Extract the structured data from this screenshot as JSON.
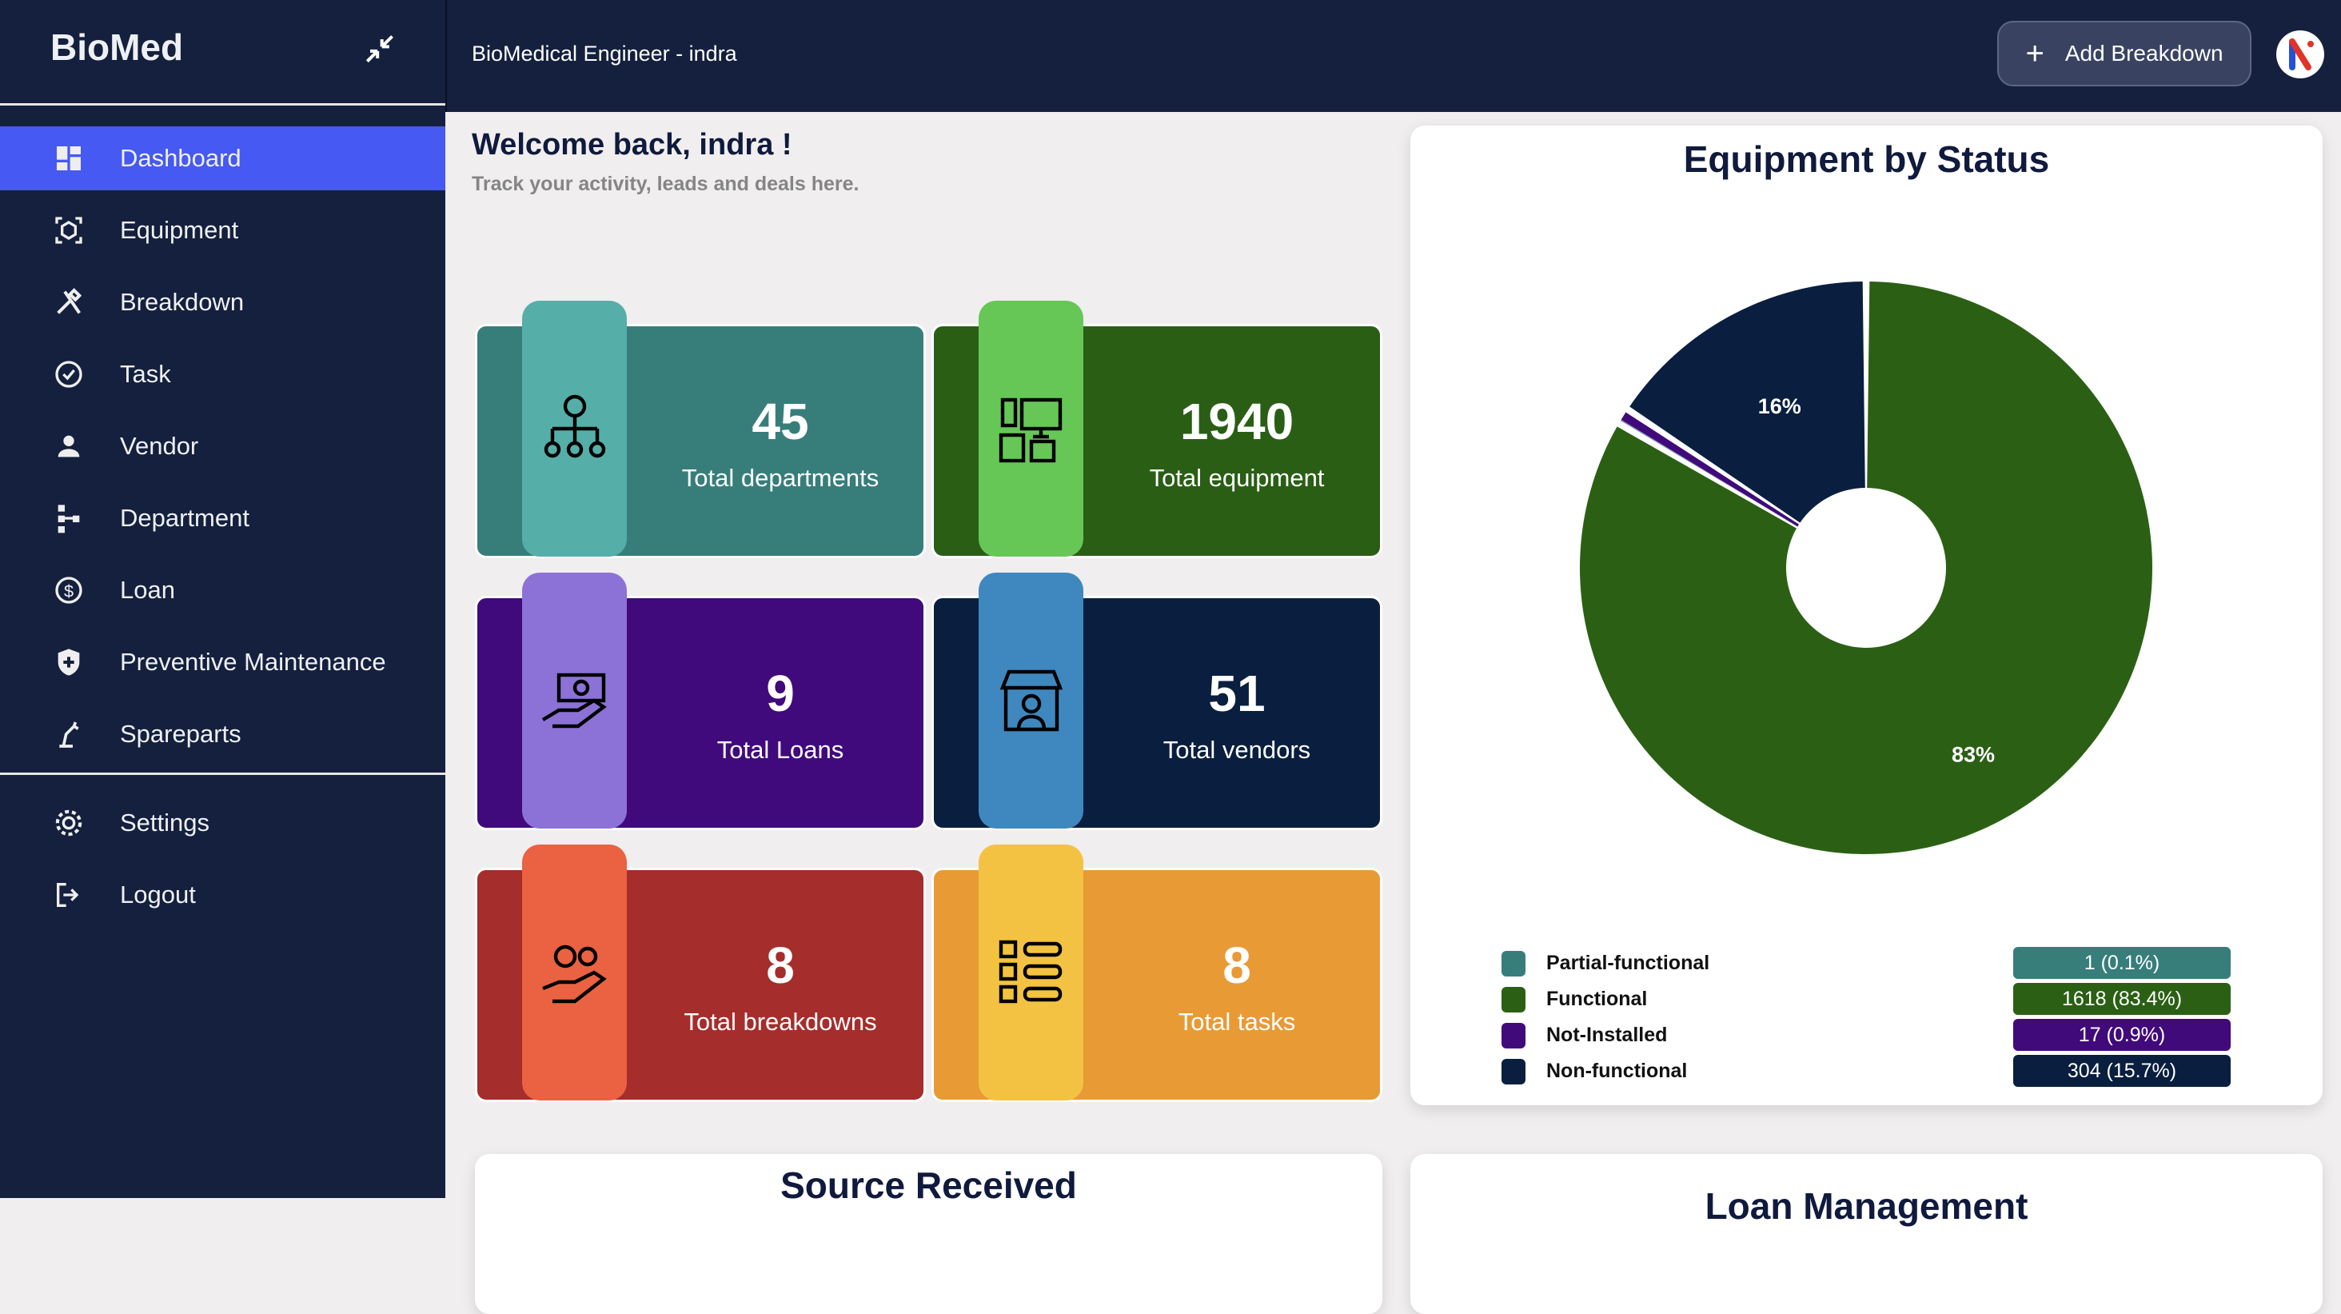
{
  "sidebar": {
    "logo": "BioMed",
    "items": [
      {
        "label": "Dashboard",
        "icon": "dashboard-icon",
        "active": true
      },
      {
        "label": "Equipment",
        "icon": "equipment-icon"
      },
      {
        "label": "Breakdown",
        "icon": "tools-icon"
      },
      {
        "label": "Task",
        "icon": "check-circle-icon"
      },
      {
        "label": "Vendor",
        "icon": "person-icon"
      },
      {
        "label": "Department",
        "icon": "hierarchy-icon"
      },
      {
        "label": "Loan",
        "icon": "dollar-icon"
      },
      {
        "label": "Preventive Maintenance",
        "icon": "shield-plus-icon"
      },
      {
        "label": "Spareparts",
        "icon": "robot-arm-icon"
      }
    ],
    "bottom": [
      {
        "label": "Settings",
        "icon": "gear-icon"
      },
      {
        "label": "Logout",
        "icon": "logout-icon"
      }
    ]
  },
  "header": {
    "title": "BioMedical Engineer - indra",
    "add_button": "Add Breakdown"
  },
  "welcome": {
    "title": "Welcome back, indra !",
    "subtitle": "Track your activity, leads and deals here."
  },
  "stats": [
    {
      "value": "45",
      "label": "Total departments",
      "bg": "#377e7b",
      "tab": "#55afa8",
      "icon": "org-chart-icon"
    },
    {
      "value": "1940",
      "label": "Total equipment",
      "bg": "#2a5e15",
      "tab": "#66c757",
      "icon": "devices-icon"
    },
    {
      "value": "9",
      "label": "Total Loans",
      "bg": "#400a7c",
      "tab": "#8c72d6",
      "icon": "money-hand-icon"
    },
    {
      "value": "51",
      "label": "Total vendors",
      "bg": "#0a1f3f",
      "tab": "#3f88bf",
      "icon": "shop-icon"
    },
    {
      "value": "8",
      "label": "Total breakdowns",
      "bg": "#a52d2c",
      "tab": "#ea6241",
      "icon": "gears-hand-icon"
    },
    {
      "value": "8",
      "label": "Total tasks",
      "bg": "#e89a35",
      "tab": "#f3c242",
      "icon": "checklist-icon"
    }
  ],
  "chart_data": {
    "type": "pie",
    "title": "Equipment by Status",
    "donut": true,
    "slices": [
      {
        "name": "Functional",
        "value": 1618,
        "percent": 83.4,
        "display": "1618 (83.4%)",
        "label": "83%",
        "color": "#2b6014"
      },
      {
        "name": "Partial-functional",
        "value": 1,
        "percent": 0.1,
        "display": "1 (0.1%)",
        "label": "",
        "color": "#377e7b"
      },
      {
        "name": "Not-Installed",
        "value": 17,
        "percent": 0.9,
        "display": "17 (0.9%)",
        "label": "",
        "color": "#410a7b"
      },
      {
        "name": "Non-functional",
        "value": 304,
        "percent": 15.7,
        "display": "304 (15.7%)",
        "label": "16%",
        "color": "#0a1f3f"
      }
    ],
    "legend_order": [
      "Partial-functional",
      "Functional",
      "Not-Installed",
      "Non-functional"
    ]
  },
  "bottom_panels": {
    "left_title": "Source Received",
    "right_title": "Loan Management"
  }
}
